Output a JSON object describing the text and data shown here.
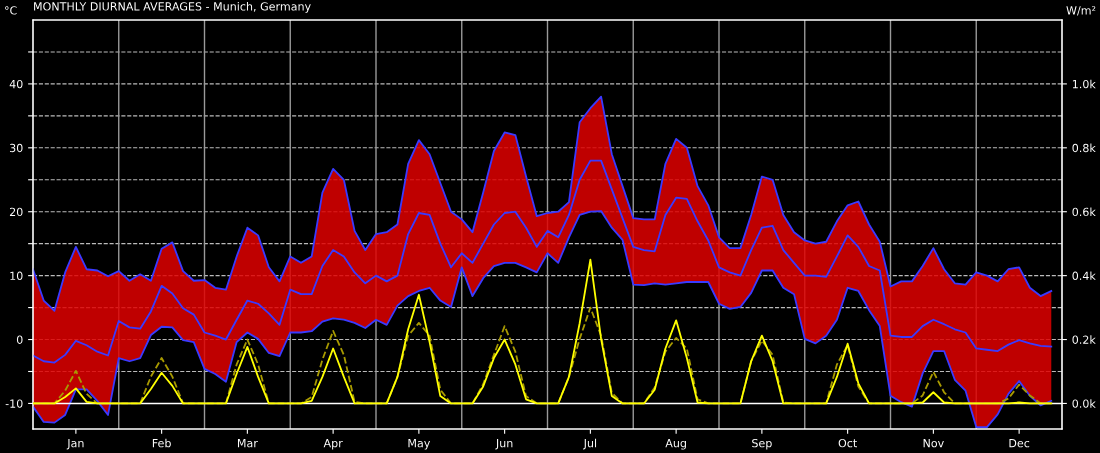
{
  "chart_data": {
    "type": "line",
    "title": "MONTHLY DIURNAL AVERAGES - Munich, Germany",
    "ylabel": "°C",
    "y2label": "W/m²",
    "categories": [
      null,
      null,
      null,
      null,
      "Jan",
      null,
      null,
      null,
      null,
      null,
      null,
      null,
      "Feb",
      null,
      null,
      null,
      null,
      null,
      null,
      null,
      "Mar",
      null,
      null,
      null,
      null,
      null,
      null,
      null,
      "Apr",
      null,
      null,
      null,
      null,
      null,
      null,
      null,
      "May",
      null,
      null,
      null,
      null,
      null,
      null,
      null,
      "Jun",
      null,
      null,
      null,
      null,
      null,
      null,
      null,
      "Jul",
      null,
      null,
      null,
      null,
      null,
      null,
      null,
      "Aug",
      null,
      null,
      null,
      null,
      null,
      null,
      null,
      "Sep",
      null,
      null,
      null,
      null,
      null,
      null,
      null,
      "Oct",
      null,
      null,
      null,
      null,
      null,
      null,
      null,
      "Nov",
      null,
      null,
      null,
      null,
      null,
      null,
      null,
      "Dec",
      null,
      null,
      null
    ],
    "ylim": [
      -14,
      50
    ],
    "y2lim": [
      -80,
      1200
    ],
    "yticks": [
      -10,
      {
        "value": -5,
        "label": null
      },
      0,
      {
        "value": 5,
        "label": null
      },
      10,
      {
        "value": 15,
        "label": null
      },
      20,
      {
        "value": 25,
        "label": null
      },
      30,
      {
        "value": 35,
        "label": null
      },
      40,
      {
        "value": 45,
        "label": null
      }
    ],
    "y2ticks": [
      {
        "value": 0,
        "label": "0.0k"
      },
      {
        "value": 200,
        "label": "0.2k"
      },
      {
        "value": 400,
        "label": "0.4k"
      },
      {
        "value": 600,
        "label": "0.6k"
      },
      {
        "value": 800,
        "label": "0.8k"
      },
      {
        "value": 1000,
        "label": "1.0k"
      }
    ],
    "grid": true,
    "ref_lines": [
      {
        "axis": "y",
        "value": -10,
        "label": null,
        "color": "#ffffff"
      }
    ],
    "series": [
      {
        "color": "#3a3aff",
        "line_style": "solid",
        "values": [
          -2.5,
          -3.4,
          -3.6,
          -2.4,
          -0.2,
          -0.9,
          -1.9,
          -2.5,
          2.9,
          1.9,
          1.7,
          4.4,
          8.4,
          7.2,
          4.9,
          3.9,
          1.1,
          0.6,
          0,
          3.1,
          6.1,
          5.6,
          4.1,
          2.3,
          7.8,
          7.1,
          7.1,
          11.5,
          14,
          13,
          10.5,
          8.8,
          10,
          9.1,
          10,
          16.5,
          19.8,
          19.5,
          15,
          11.3,
          13.5,
          12,
          15,
          18,
          19.8,
          20,
          17.5,
          14.5,
          17,
          16,
          19.5,
          25,
          28,
          28,
          23.5,
          19,
          14.5,
          14,
          13.8,
          19.5,
          22.2,
          22,
          18.5,
          15.5,
          11.3,
          10.5,
          10,
          14,
          17.5,
          17.8,
          14,
          12,
          10,
          10,
          9.8,
          13,
          16.3,
          14.5,
          11.5,
          10.8,
          0.6,
          0.4,
          0.4,
          2.1,
          3.1,
          2.4,
          1.6,
          1.1,
          -1.4,
          -1.6,
          -1.8,
          -0.8,
          -0.1,
          -0.6,
          -1,
          -1.1
        ],
        "upper": [
          11,
          6.1,
          4.5,
          10.5,
          14.5,
          11,
          10.8,
          9.9,
          10.7,
          9.2,
          10.2,
          9.2,
          14.2,
          15.2,
          10.7,
          9.2,
          9.3,
          8.1,
          7.8,
          13,
          17.5,
          16.3,
          11.3,
          9.1,
          13,
          12,
          13,
          23,
          26.7,
          25,
          17,
          14,
          16.5,
          16.8,
          18,
          27.5,
          31.2,
          29,
          24.5,
          20,
          18.8,
          16.8,
          23,
          29.5,
          32.4,
          32,
          25.5,
          19.3,
          19.8,
          20,
          21.5,
          34,
          36.2,
          38,
          29,
          24,
          19,
          18.8,
          18.8,
          27.5,
          31.4,
          30,
          24,
          21,
          16,
          14.3,
          14.3,
          19.5,
          25.5,
          25,
          19.5,
          16.8,
          15.5,
          15,
          15.3,
          18.5,
          21,
          21.6,
          18,
          15.3,
          8.3,
          9.1,
          9.1,
          11.5,
          14.3,
          11,
          8.8,
          8.6,
          10.5,
          10,
          9.1,
          11,
          11.3,
          8.1,
          6.8,
          7.6
        ],
        "lower": [
          -10.5,
          -12.9,
          -13,
          -11.8,
          -7.8,
          -7.8,
          -9.6,
          -11.8,
          -2.9,
          -3.4,
          -2.9,
          0.7,
          2,
          1.9,
          -0.1,
          -0.4,
          -4.6,
          -5.4,
          -6.6,
          -0.4,
          1.1,
          0.1,
          -2.1,
          -2.6,
          1.1,
          1.1,
          1.3,
          2.8,
          3.3,
          3.1,
          2.6,
          1.8,
          3.1,
          2.3,
          5.3,
          6.8,
          7.6,
          8.1,
          6.1,
          5.1,
          11.3,
          6.8,
          9.6,
          11.5,
          12,
          12,
          11.3,
          10.5,
          13.5,
          12,
          16,
          19.5,
          20,
          20.1,
          17.5,
          15.6,
          8.6,
          8.5,
          8.8,
          8.6,
          8.8,
          9,
          9,
          9,
          5.6,
          4.8,
          5.1,
          7.3,
          10.8,
          10.8,
          8.1,
          7.1,
          0.1,
          -0.6,
          0.6,
          3.1,
          8.1,
          7.6,
          4.6,
          2.1,
          -8.8,
          -9.8,
          -10.5,
          -5.3,
          -1.8,
          -1.8,
          -6.3,
          -8,
          -13.7,
          -13.7,
          -11.7,
          -8.5,
          -6.5,
          -8.8,
          -10.3,
          -9.6
        ]
      },
      {
        "color": "#3a3aff",
        "line_style": "solid",
        "values": [
          11,
          6.1,
          4.5,
          10.5,
          14.5,
          11,
          10.8,
          9.9,
          10.7,
          9.2,
          10.2,
          9.2,
          14.2,
          15.2,
          10.7,
          9.2,
          9.3,
          8.1,
          7.8,
          13,
          17.5,
          16.3,
          11.3,
          9.1,
          13,
          12,
          13,
          23,
          26.7,
          25,
          17,
          14,
          16.5,
          16.8,
          18,
          27.5,
          31.2,
          29,
          24.5,
          20,
          18.8,
          16.8,
          23,
          29.5,
          32.4,
          32,
          25.5,
          19.3,
          19.8,
          20,
          21.5,
          34,
          36.2,
          38,
          29,
          24,
          19,
          18.8,
          18.8,
          27.5,
          31.4,
          30,
          24,
          21,
          16,
          14.3,
          14.3,
          19.5,
          25.5,
          25,
          19.5,
          16.8,
          15.5,
          15,
          15.3,
          18.5,
          21,
          21.6,
          18,
          15.3,
          8.3,
          9.1,
          9.1,
          11.5,
          14.3,
          11,
          8.8,
          8.6,
          10.5,
          10,
          9.1,
          11,
          11.3,
          8.1,
          6.8,
          7.6
        ]
      },
      {
        "color": "#3a3aff",
        "line_style": "solid",
        "values": [
          -10.5,
          -12.9,
          -13,
          -11.8,
          -7.8,
          -7.8,
          -9.6,
          -11.8,
          -2.9,
          -3.4,
          -2.9,
          0.7,
          2,
          1.9,
          -0.1,
          -0.4,
          -4.6,
          -5.4,
          -6.6,
          -0.4,
          1.1,
          0.1,
          -2.1,
          -2.6,
          1.1,
          1.1,
          1.3,
          2.8,
          3.3,
          3.1,
          2.6,
          1.8,
          3.1,
          2.3,
          5.3,
          6.8,
          7.6,
          8.1,
          6.1,
          5.1,
          11.3,
          6.8,
          9.6,
          11.5,
          12,
          12,
          11.3,
          10.5,
          13.5,
          12,
          16,
          19.5,
          20,
          20.1,
          17.5,
          15.6,
          8.6,
          8.5,
          8.8,
          8.6,
          8.8,
          9,
          9,
          9,
          5.6,
          4.8,
          5.1,
          7.3,
          10.8,
          10.8,
          8.1,
          7.1,
          0.1,
          -0.6,
          0.6,
          3.1,
          8.1,
          7.6,
          4.6,
          2.1,
          -8.8,
          -9.8,
          -10.5,
          -5.3,
          -1.8,
          -1.8,
          -6.3,
          -8,
          -13.7,
          -13.7,
          -11.7,
          -8.5,
          -6.5,
          -8.8,
          -10.3,
          -9.6
        ]
      },
      {
        "axis": "y2",
        "color": "#a89a00",
        "line_style": "dashed",
        "values": [
          0,
          0,
          0,
          40,
          102,
          30,
          0,
          0,
          0,
          0,
          0,
          84,
          142,
          84,
          0,
          0,
          0,
          0,
          0,
          122,
          200,
          122,
          0,
          0,
          0,
          0,
          20,
          137,
          227,
          152,
          5,
          0,
          0,
          0,
          83,
          212,
          252,
          212,
          43,
          0,
          0,
          0,
          60,
          152,
          242,
          162,
          23,
          0,
          0,
          0,
          83,
          202,
          300,
          212,
          33,
          0,
          0,
          0,
          50,
          162,
          205,
          172,
          13,
          0,
          0,
          0,
          0,
          132,
          197,
          152,
          3,
          0,
          0,
          0,
          0,
          122,
          182,
          53,
          0,
          0,
          0,
          0,
          0,
          25,
          99,
          35,
          0,
          0,
          0,
          0,
          0,
          15,
          59,
          25,
          0,
          0
        ]
      },
      {
        "axis": "y2",
        "color": "#ffff00",
        "line_style": "solid",
        "values": [
          0,
          0,
          0,
          20,
          47,
          5,
          0,
          0,
          0,
          0,
          0,
          45,
          96,
          55,
          0,
          0,
          0,
          0,
          0,
          93,
          177,
          83,
          0,
          0,
          0,
          0,
          8,
          83,
          172,
          83,
          0,
          0,
          0,
          0,
          83,
          232,
          340,
          192,
          23,
          0,
          0,
          0,
          53,
          142,
          200,
          122,
          13,
          0,
          0,
          0,
          83,
          251,
          450,
          202,
          23,
          0,
          0,
          0,
          43,
          172,
          260,
          142,
          3,
          0,
          0,
          0,
          0,
          132,
          212,
          132,
          0,
          0,
          0,
          0,
          0,
          83,
          187,
          63,
          0,
          0,
          0,
          0,
          0,
          3,
          35,
          3,
          0,
          0,
          0,
          0,
          0,
          0,
          3,
          0,
          0,
          0
        ]
      }
    ]
  }
}
